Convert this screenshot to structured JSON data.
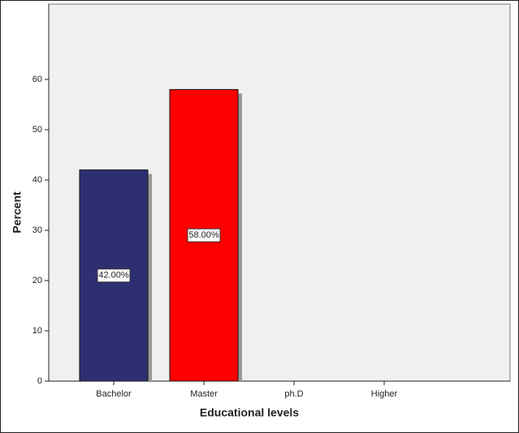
{
  "chart_data": {
    "type": "bar",
    "x_label": "Educational levels",
    "y_label": "Percent",
    "categories": [
      "Bachelor",
      "Master",
      "ph.D",
      "Higher"
    ],
    "values": [
      42,
      58,
      null,
      null
    ],
    "value_labels": [
      "42.00%",
      "58.00%",
      null,
      null
    ],
    "colors": [
      "#2e2f72",
      "#ff0000",
      null,
      null
    ],
    "ylim": [
      0,
      75
    ],
    "yticks": [
      0,
      10,
      20,
      30,
      40,
      50,
      60
    ]
  }
}
